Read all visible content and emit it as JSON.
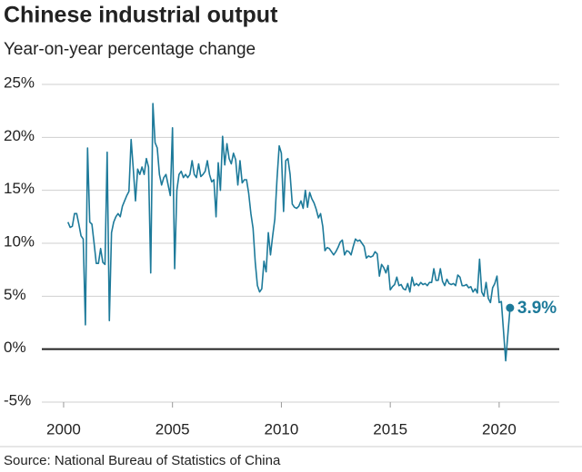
{
  "chart_data": {
    "type": "line",
    "title": "Chinese industrial output",
    "subtitle": "Year-on-year percentage change",
    "source": "Source: National Bureau of Statistics of China",
    "grid": true,
    "xlim": [
      1999,
      2022.76
    ],
    "ylim": [
      -5,
      25
    ],
    "xticks": [
      2000,
      2005,
      2010,
      2015,
      2020
    ],
    "yticks": [
      {
        "value": -5,
        "label": "-5%"
      },
      {
        "value": 0,
        "label": "0%"
      },
      {
        "value": 5,
        "label": "5%"
      },
      {
        "value": 10,
        "label": "10%"
      },
      {
        "value": 15,
        "label": "15%"
      },
      {
        "value": 20,
        "label": "20%"
      },
      {
        "value": 25,
        "label": "25%"
      }
    ],
    "x": [
      2000.2,
      2000.3,
      2000.4,
      2000.5,
      2000.6,
      2000.7,
      2000.8,
      2000.9,
      2001.0,
      2001.1,
      2001.2,
      2001.3,
      2001.4,
      2001.5,
      2001.6,
      2001.7,
      2001.8,
      2001.9,
      2002.0,
      2002.1,
      2002.2,
      2002.3,
      2002.4,
      2002.5,
      2002.6,
      2002.7,
      2002.8,
      2002.9,
      2003.0,
      2003.1,
      2003.2,
      2003.3,
      2003.4,
      2003.5,
      2003.6,
      2003.7,
      2003.8,
      2003.9,
      2004.0,
      2004.1,
      2004.2,
      2004.3,
      2004.4,
      2004.5,
      2004.6,
      2004.7,
      2004.8,
      2004.9,
      2005.0,
      2005.1,
      2005.2,
      2005.3,
      2005.4,
      2005.5,
      2005.6,
      2005.7,
      2005.8,
      2005.9,
      2006.0,
      2006.1,
      2006.2,
      2006.3,
      2006.4,
      2006.5,
      2006.6,
      2006.7,
      2006.8,
      2006.9,
      2007.0,
      2007.1,
      2007.2,
      2007.3,
      2007.4,
      2007.5,
      2007.6,
      2007.7,
      2007.8,
      2007.9,
      2008.0,
      2008.1,
      2008.2,
      2008.3,
      2008.4,
      2008.5,
      2008.6,
      2008.7,
      2008.8,
      2008.9,
      2009.0,
      2009.1,
      2009.2,
      2009.3,
      2009.4,
      2009.5,
      2009.6,
      2009.7,
      2009.8,
      2009.9,
      2010.0,
      2010.1,
      2010.2,
      2010.3,
      2010.4,
      2010.5,
      2010.6,
      2010.7,
      2010.8,
      2010.9,
      2011.0,
      2011.1,
      2011.2,
      2011.3,
      2011.4,
      2011.5,
      2011.6,
      2011.7,
      2011.8,
      2011.9,
      2012.0,
      2012.1,
      2012.2,
      2012.3,
      2012.4,
      2012.5,
      2012.6,
      2012.7,
      2012.8,
      2012.9,
      2013.0,
      2013.1,
      2013.2,
      2013.3,
      2013.4,
      2013.5,
      2013.6,
      2013.7,
      2013.8,
      2013.9,
      2014.0,
      2014.1,
      2014.2,
      2014.3,
      2014.4,
      2014.5,
      2014.6,
      2014.7,
      2014.8,
      2014.9,
      2015.0,
      2015.1,
      2015.2,
      2015.3,
      2015.4,
      2015.5,
      2015.6,
      2015.7,
      2015.8,
      2015.9,
      2016.0,
      2016.1,
      2016.2,
      2016.3,
      2016.4,
      2016.5,
      2016.6,
      2016.7,
      2016.8,
      2016.9,
      2017.0,
      2017.1,
      2017.2,
      2017.3,
      2017.4,
      2017.5,
      2017.6,
      2017.7,
      2017.8,
      2017.9,
      2018.0,
      2018.1,
      2018.2,
      2018.3,
      2018.4,
      2018.5,
      2018.6,
      2018.7,
      2018.8,
      2018.9,
      2019.0,
      2019.1,
      2019.2,
      2019.3,
      2019.4,
      2019.5,
      2019.6,
      2019.7,
      2019.8,
      2019.9,
      2020.0,
      2020.1,
      2020.3,
      2020.5
    ],
    "series": [
      {
        "color": "#1d7a9a",
        "values": [
          12,
          11.5,
          11.6,
          12.8,
          12.8,
          11.8,
          10.7,
          10.4,
          2.3,
          19,
          12,
          11.8,
          10,
          8.1,
          8.1,
          9.5,
          8.2,
          8.0,
          18.6,
          2.7,
          11,
          12,
          12.5,
          12.8,
          12.5,
          13.5,
          14,
          14.5,
          14.9,
          19.8,
          17,
          14,
          17,
          16.5,
          17.2,
          16.5,
          18,
          17.2,
          7.2,
          23.2,
          19.5,
          19,
          16.5,
          15.5,
          16.2,
          16.5,
          15.5,
          14.5,
          20.9,
          7.6,
          15,
          16.5,
          16.8,
          16.2,
          16.5,
          16.2,
          16.5,
          17.8,
          16.5,
          16.2,
          17.5,
          16.3,
          16.5,
          16.8,
          17.8,
          16.5,
          15.8,
          16,
          12.5,
          17.6,
          15,
          20.1,
          17.4,
          19.4,
          18,
          17.5,
          18.5,
          17.9,
          15.5,
          17.8,
          15.7,
          16,
          16,
          14.7,
          12.8,
          11.4,
          8.2,
          6.0,
          5.4,
          5.7,
          8.3,
          7.3,
          11,
          8.9,
          10.7,
          12.3,
          16.1,
          19.2,
          18.5,
          13,
          17.8,
          18,
          16.5,
          13.7,
          13.4,
          13.3,
          13.5,
          14,
          13.3,
          15,
          13.4,
          14.8,
          14.2,
          13.8,
          13.2,
          12.4,
          12.8,
          11.6,
          9.3,
          9.6,
          9.5,
          9.2,
          8.9,
          9.2,
          9.6,
          10.1,
          10.3,
          8.9,
          9.3,
          9.2,
          8.9,
          9.7,
          10.4,
          10.2,
          10.3,
          10.0,
          9.7,
          8.6,
          8.8,
          8.7,
          8.8,
          9.2,
          9.0,
          6.9,
          8.0,
          7.7,
          7.2,
          7.9,
          5.6,
          5.9,
          6.1,
          6.8,
          6.0,
          6.1,
          5.7,
          5.6,
          6.2,
          5.4,
          6.8,
          6.0,
          6.2,
          6.0,
          6.3,
          6.1,
          6.2,
          6.0,
          6.3,
          6.3,
          7.6,
          6.5,
          6.5,
          7.6,
          6.4,
          6.0,
          6.6,
          6.2,
          6.1,
          6.2,
          6.0,
          7.0,
          6.8,
          6.0,
          6.0,
          6.1,
          5.8,
          5.9,
          5.4,
          5.7,
          5.3,
          8.5,
          5.4,
          5.0,
          6.3,
          4.8,
          4.4,
          5.8,
          6.2,
          6.9,
          4.4,
          4.5,
          -1.1,
          3.9
        ],
        "value_labels": [
          null,
          null,
          null,
          null,
          null,
          null,
          null,
          null,
          null,
          null,
          null,
          null,
          null,
          null,
          null,
          null,
          null,
          null,
          null,
          null,
          null,
          null,
          null,
          null,
          null,
          null,
          null,
          null,
          null,
          null,
          null,
          null,
          null,
          null,
          null,
          null,
          null,
          null,
          null,
          null,
          null,
          null,
          null,
          null,
          null,
          null,
          null,
          null,
          null,
          null,
          null,
          null,
          null,
          null,
          null,
          null,
          null,
          null,
          null,
          null,
          null,
          null,
          null,
          null,
          null,
          null,
          null,
          null,
          null,
          null,
          null,
          null,
          null,
          null,
          null,
          null,
          null,
          null,
          null,
          null,
          null,
          null,
          null,
          null,
          null,
          null,
          null,
          null,
          null,
          null,
          null,
          null,
          null,
          null,
          null,
          null,
          null,
          null,
          null,
          null,
          null,
          null,
          null,
          null,
          null,
          null,
          null,
          null,
          null,
          null,
          null,
          null,
          null,
          null,
          null,
          null,
          null,
          null,
          null,
          null,
          null,
          null,
          null,
          null,
          null,
          null,
          null,
          null,
          null,
          null,
          null,
          null,
          null,
          null,
          null,
          null,
          null,
          null,
          null,
          null,
          null,
          null,
          null,
          null,
          null,
          null,
          null,
          null,
          null,
          null,
          null,
          null,
          null,
          null,
          null,
          null,
          null,
          null,
          null,
          null,
          null,
          null,
          null,
          null,
          null,
          null,
          null,
          null,
          null,
          null,
          null,
          null,
          null,
          null,
          null,
          null,
          null,
          null,
          null,
          null,
          null,
          null,
          null,
          null,
          null,
          null,
          null,
          null,
          null,
          null,
          null,
          null,
          null,
          null,
          null,
          null,
          null,
          null,
          null,
          null,
          null,
          "3.9%"
        ]
      }
    ]
  }
}
